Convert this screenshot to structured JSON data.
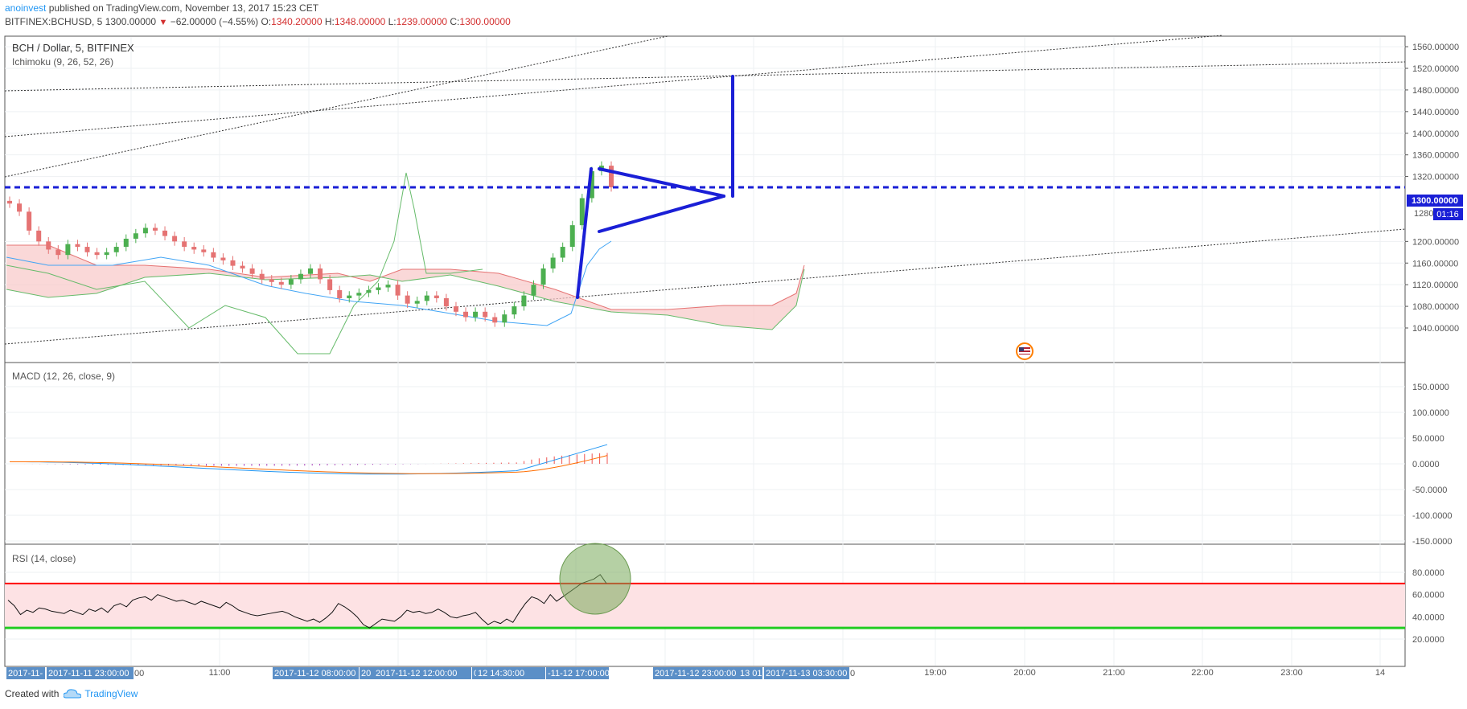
{
  "header": {
    "author": "anoinvest",
    "published": "published on TradingView.com, November 13, 2017 15:23 CET",
    "symbol_line": "BITFINEX:BCHUSD, 5",
    "last": "1300.00000",
    "change": "−62.00000 (−4.55%)",
    "o_label": "O:",
    "o_value": "1340.20000",
    "h_label": "H:",
    "h_value": "1348.00000",
    "l_label": "L:",
    "l_value": "1239.00000",
    "c_label": "C:",
    "c_value": "1300.00000"
  },
  "main_pane": {
    "title": "BCH / Dollar, 5, BITFINEX",
    "indicator": "Ichimoku (9, 26, 52, 26)",
    "price_badge": "1300.00000",
    "timer_badge": "01:16",
    "partial_tick": "1280"
  },
  "macd_pane": {
    "title": "MACD (12, 26, close, 9)"
  },
  "rsi_pane": {
    "title": "RSI (14, close)"
  },
  "footer": {
    "created_with": "Created with",
    "brand": "TradingView"
  },
  "colors": {
    "bull": "#4caf50",
    "bear": "#e57373",
    "drawing": "#1a1fd6",
    "rsi_upper": "#ff0000",
    "rsi_lower": "#00c800",
    "cloud_bear": "#f8c8c8",
    "cloud_bull": "#c8e6c0"
  },
  "chart_data": [
    {
      "type": "candlestick",
      "title": "BCH / Dollar, 5, BITFINEX",
      "y_ticks": [
        "1560.00000",
        "1520.00000",
        "1480.00000",
        "1440.00000",
        "1400.00000",
        "1360.00000",
        "1320.00000",
        "1200.00000",
        "1160.00000",
        "1120.00000",
        "1080.00000",
        "1040.00000"
      ],
      "ylim": [
        1030,
        1577
      ],
      "horizontal_line": 1300,
      "series_approx": {
        "close": [
          1270,
          1255,
          1220,
          1200,
          1185,
          1175,
          1195,
          1190,
          1180,
          1175,
          1180,
          1190,
          1205,
          1215,
          1225,
          1220,
          1210,
          1200,
          1190,
          1185,
          1180,
          1170,
          1165,
          1155,
          1150,
          1140,
          1130,
          1125,
          1120,
          1130,
          1140,
          1150,
          1130,
          1110,
          1095,
          1100,
          1105,
          1110,
          1115,
          1120,
          1100,
          1085,
          1090,
          1100,
          1095,
          1080,
          1070,
          1060,
          1070,
          1060,
          1050,
          1065,
          1080,
          1100,
          1120,
          1150,
          1170,
          1190,
          1230,
          1280,
          1330,
          1340,
          1300
        ]
      }
    },
    {
      "type": "line",
      "title": "MACD (12, 26, close, 9)",
      "y_ticks": [
        "150.0000",
        "100.0000",
        "50.0000",
        "0.0000",
        "-50.0000",
        "-100.0000",
        "-150.0000"
      ],
      "ylim": [
        -150,
        150
      ]
    },
    {
      "type": "line",
      "title": "RSI (14, close)",
      "y_ticks": [
        "80.0000",
        "60.0000",
        "40.0000",
        "20.0000"
      ],
      "ylim": [
        10,
        100
      ],
      "bands": [
        30,
        70
      ],
      "values": [
        55,
        50,
        42,
        46,
        44,
        48,
        47,
        45,
        44,
        43,
        46,
        44,
        42,
        47,
        45,
        48,
        44,
        50,
        52,
        49,
        55,
        57,
        58,
        55,
        60,
        58,
        56,
        54,
        55,
        53,
        51,
        54,
        52,
        50,
        48,
        53,
        50,
        46,
        44,
        42,
        41,
        42,
        43,
        44,
        45,
        43,
        40,
        38,
        36,
        38,
        35,
        39,
        44,
        52,
        49,
        45,
        40,
        33,
        30,
        34,
        38,
        37,
        36,
        40,
        46,
        44,
        45,
        43,
        44,
        47,
        44,
        40,
        39,
        41,
        42,
        44,
        38,
        33,
        36,
        34,
        38,
        35,
        44,
        52,
        58,
        56,
        52,
        60,
        54,
        58,
        62,
        66,
        70,
        72,
        74,
        78,
        70
      ]
    }
  ],
  "x_axis": {
    "tick_labels": [
      "11:00",
      "19:00",
      "20:00",
      "21:00",
      "22:00",
      "23:00",
      "14"
    ],
    "badges": [
      "2017-11-",
      "2017-11-11 23:00:00",
      "00",
      "2017-11-12 08:00:00",
      "20",
      "2017-11-12 12:00:00",
      "00",
      "12 14:30:00",
      "-11-12 17:00:00",
      "2017-11-12 23:00:00",
      "13 01:",
      "2017-11-13 03:30:00",
      "0"
    ]
  }
}
